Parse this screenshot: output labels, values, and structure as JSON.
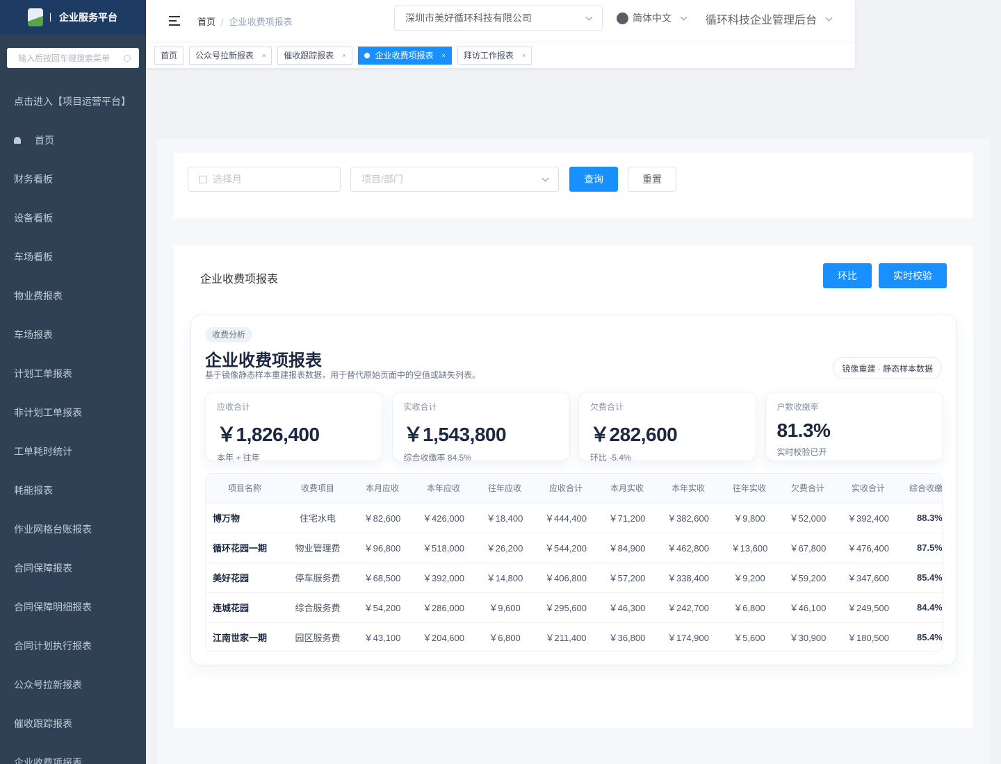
{
  "sidebar": {
    "title": "企业服务平台",
    "search_placeholder": "输入后按回车键搜索菜单",
    "items": [
      "点击进入【项目运营平台】",
      "首页",
      "财务看板",
      "设备看板",
      "车场看板",
      "物业费报表",
      "车场报表",
      "计划工单报表",
      "非计划工单报表",
      "工单耗时统计",
      "耗能报表",
      "作业网格台账报表",
      "合同保障报表",
      "合同保障明细报表",
      "合同计划执行报表",
      "公众号拉新报表",
      "催收跟踪报表",
      "企业收费项报表"
    ]
  },
  "header": {
    "breadcrumb": [
      "首页",
      "企业收费项报表"
    ],
    "company": "深圳市美好循环科技有限公司",
    "language": "简体中文",
    "system": "循环科技企业管理后台"
  },
  "tabs": [
    {
      "label": "首页"
    },
    {
      "label": "公众号拉新报表"
    },
    {
      "label": "催收跟踪报表"
    },
    {
      "label": "企业收费项报表",
      "active": true
    },
    {
      "label": "拜访工作报表"
    }
  ],
  "filter": {
    "month_placeholder": "选择月",
    "dept_placeholder": "项目/部门",
    "query": "查询",
    "reset": "重置"
  },
  "report": {
    "title": "企业收费项报表",
    "mom": "环比",
    "verify": "实时校验",
    "chip": "收费分析",
    "panel_title": "企业收费项报表",
    "panel_sub": "基于镜像静态样本重建报表数据，用于替代原始页面中的空值或缺失列表。",
    "badge": "镜像重建 · 静态样本数据",
    "stats": [
      {
        "label": "应收合计",
        "value": "￥1,826,400",
        "note": "本年 + 往年"
      },
      {
        "label": "实收合计",
        "value": "￥1,543,800",
        "note": "综合收缴率 84.5%"
      },
      {
        "label": "欠费合计",
        "value": "￥282,600",
        "note": "环比 -5.4%"
      },
      {
        "label": "户数收缴率",
        "value": "81.3%",
        "note": "实时校验已开"
      }
    ],
    "columns": [
      "项目名称",
      "收费项目",
      "本月应收",
      "本年应收",
      "往年应收",
      "应收合计",
      "本月实收",
      "本年实收",
      "往年实收",
      "欠费合计",
      "实收合计",
      "综合收缴"
    ],
    "rows": [
      [
        "博万物",
        "住宅水电",
        "￥82,600",
        "￥426,000",
        "￥18,400",
        "￥444,400",
        "￥71,200",
        "￥382,600",
        "￥9,800",
        "￥52,000",
        "￥392,400",
        "88.3%"
      ],
      [
        "循环花园一期",
        "物业管理费",
        "￥96,800",
        "￥518,000",
        "￥26,200",
        "￥544,200",
        "￥84,900",
        "￥462,800",
        "￥13,600",
        "￥67,800",
        "￥476,400",
        "87.5%"
      ],
      [
        "美好花园",
        "停车服务费",
        "￥68,500",
        "￥392,000",
        "￥14,800",
        "￥406,800",
        "￥57,200",
        "￥338,400",
        "￥9,200",
        "￥59,200",
        "￥347,600",
        "85.4%"
      ],
      [
        "连城花园",
        "综合服务费",
        "￥54,200",
        "￥286,000",
        "￥9,600",
        "￥295,600",
        "￥46,300",
        "￥242,700",
        "￥6,800",
        "￥46,100",
        "￥249,500",
        "84.4%"
      ],
      [
        "江南世家一期",
        "园区服务费",
        "￥43,100",
        "￥204,600",
        "￥6,800",
        "￥211,400",
        "￥36,800",
        "￥174,900",
        "￥5,600",
        "￥30,900",
        "￥180,500",
        "85.4%"
      ]
    ]
  }
}
